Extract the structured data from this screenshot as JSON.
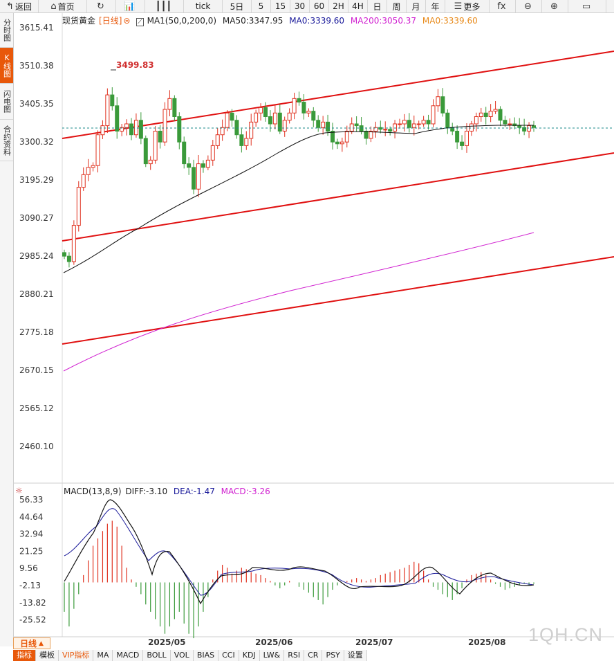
{
  "toolbar": [
    {
      "name": "back-button",
      "icon": "↰",
      "label": "返回"
    },
    {
      "name": "home-button",
      "icon": "⌂",
      "label": "首页"
    },
    {
      "name": "refresh-button",
      "icon": "↻",
      "label": ""
    },
    {
      "name": "kline-chart-button",
      "icon": "📊",
      "label": ""
    },
    {
      "name": "candle-style-button",
      "icon": "┃┃┃",
      "label": ""
    },
    {
      "name": "tick-button",
      "icon": "",
      "label": "tick"
    },
    {
      "name": "5day-button",
      "icon": "",
      "label": "5日"
    },
    {
      "name": "5min-button",
      "icon": "",
      "label": "5"
    },
    {
      "name": "15min-button",
      "icon": "",
      "label": "15"
    },
    {
      "name": "30min-button",
      "icon": "",
      "label": "30"
    },
    {
      "name": "60min-button",
      "icon": "",
      "label": "60"
    },
    {
      "name": "2h-button",
      "icon": "",
      "label": "2H"
    },
    {
      "name": "4h-button",
      "icon": "",
      "label": "4H"
    },
    {
      "name": "day-button",
      "icon": "",
      "label": "日"
    },
    {
      "name": "week-button",
      "icon": "",
      "label": "周"
    },
    {
      "name": "month-button",
      "icon": "",
      "label": "月"
    },
    {
      "name": "year-button",
      "icon": "",
      "label": "年"
    },
    {
      "name": "more-button",
      "icon": "☰",
      "label": "更多"
    },
    {
      "name": "formula-button",
      "icon": "fx",
      "label": ""
    },
    {
      "name": "zoom-out-button",
      "icon": "⊖",
      "label": ""
    },
    {
      "name": "zoom-in-button",
      "icon": "⊕",
      "label": ""
    },
    {
      "name": "expand-button",
      "icon": "▭",
      "label": ""
    }
  ],
  "sidebar": [
    {
      "label": "分时图",
      "active": false
    },
    {
      "label": "K线图",
      "active": true
    },
    {
      "label": "闪电图",
      "active": false
    },
    {
      "label": "合约资料",
      "active": false
    }
  ],
  "legend": {
    "instrument": "现货黄金",
    "period": "[日线]",
    "ma1": "MA1(50,0,200,0)",
    "ma50": "MA50:3347.95",
    "ma0a": "MA0:3339.60",
    "ma200": "MA200:3050.37",
    "ma0b": "MA0:3339.60"
  },
  "colors": {
    "up": "#e0301e",
    "down": "#3a9a3a",
    "ma50": "#111111",
    "ma200": "#d020d0",
    "channel": "#e01010",
    "ma0a": "#1a1a9a",
    "ma0b": "#e88a1a",
    "price_line": "#1a8a8a"
  },
  "price_axis": [
    "3615.41",
    "3510.38",
    "3405.35",
    "3300.32",
    "3195.29",
    "3090.27",
    "2985.24",
    "2880.21",
    "2775.18",
    "2670.15",
    "2565.12",
    "2460.10"
  ],
  "high_annotation": "3499.83",
  "macd": {
    "title": "MACD(13,8,9)",
    "diff": "DIFF:-3.10",
    "dea": "DEA:-1.47",
    "macd": "MACD:-3.26",
    "axis": [
      "56.33",
      "44.64",
      "32.94",
      "21.25",
      "9.56",
      "-2.13",
      "-13.82",
      "-25.52"
    ]
  },
  "dates": [
    "2025/05",
    "2025/06",
    "2025/07",
    "2025/08"
  ],
  "period_button": "日线",
  "bottom_tabs": [
    {
      "label": "指标",
      "active": true
    },
    {
      "label": "模板",
      "active": false
    },
    {
      "label": "VIP指标",
      "active": false,
      "vip": true
    },
    {
      "label": "MA",
      "active": false
    },
    {
      "label": "MACD",
      "active": false
    },
    {
      "label": "BOLL",
      "active": false
    },
    {
      "label": "VOL",
      "active": false
    },
    {
      "label": "BIAS",
      "active": false
    },
    {
      "label": "CCI",
      "active": false
    },
    {
      "label": "KDJ",
      "active": false
    },
    {
      "label": "LW&",
      "active": false
    },
    {
      "label": "RSI",
      "active": false
    },
    {
      "label": "CR",
      "active": false
    },
    {
      "label": "PSY",
      "active": false
    },
    {
      "label": "设置",
      "active": false
    }
  ],
  "watermark": "1QH.CN",
  "chart_data": {
    "type": "candlestick",
    "ylim": [
      2400,
      3640
    ],
    "closes": [
      2985,
      2970,
      3070,
      3175,
      3210,
      3230,
      3235,
      3320,
      3345,
      3430,
      3400,
      3330,
      3340,
      3350,
      3320,
      3360,
      3310,
      3240,
      3250,
      3330,
      3300,
      3390,
      3420,
      3370,
      3300,
      3240,
      3230,
      3170,
      3240,
      3230,
      3250,
      3290,
      3320,
      3340,
      3380,
      3360,
      3320,
      3290,
      3310,
      3355,
      3380,
      3395,
      3370,
      3350,
      3380,
      3330,
      3360,
      3380,
      3420,
      3410,
      3380,
      3385,
      3360,
      3340,
      3355,
      3330,
      3300,
      3295,
      3300,
      3330,
      3350,
      3345,
      3330,
      3310,
      3330,
      3340,
      3335,
      3335,
      3330,
      3350,
      3350,
      3360,
      3340,
      3350,
      3350,
      3360,
      3350,
      3400,
      3425,
      3380,
      3340,
      3330,
      3300,
      3290,
      3330,
      3350,
      3370,
      3380,
      3370,
      3385,
      3390,
      3360,
      3350,
      3350,
      3345,
      3340,
      3330,
      3345,
      3340
    ]
  }
}
